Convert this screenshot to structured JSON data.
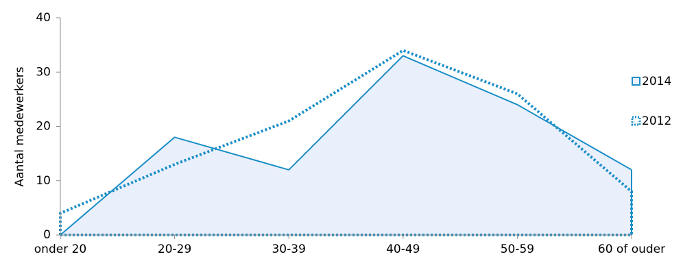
{
  "chart_data": {
    "type": "area",
    "categories": [
      "onder 20",
      "20-29",
      "30-39",
      "40-49",
      "50-59",
      "60 of ouder"
    ],
    "series": [
      {
        "name": "2014",
        "values": [
          0,
          18,
          12,
          33,
          24,
          12
        ],
        "style": "solid-area",
        "color": "#1a8ec7",
        "fill": "#eaf0fb"
      },
      {
        "name": "2012",
        "values": [
          4,
          13,
          21,
          34,
          26,
          8
        ],
        "style": "dotted-area",
        "color": "#1a8ec7"
      }
    ],
    "title": "",
    "xlabel": "",
    "ylabel": "Aantal medewerkers",
    "ylim": [
      0,
      40
    ],
    "yticks": [
      0,
      10,
      20,
      30,
      40
    ],
    "grid": false,
    "legend_position": "right"
  }
}
